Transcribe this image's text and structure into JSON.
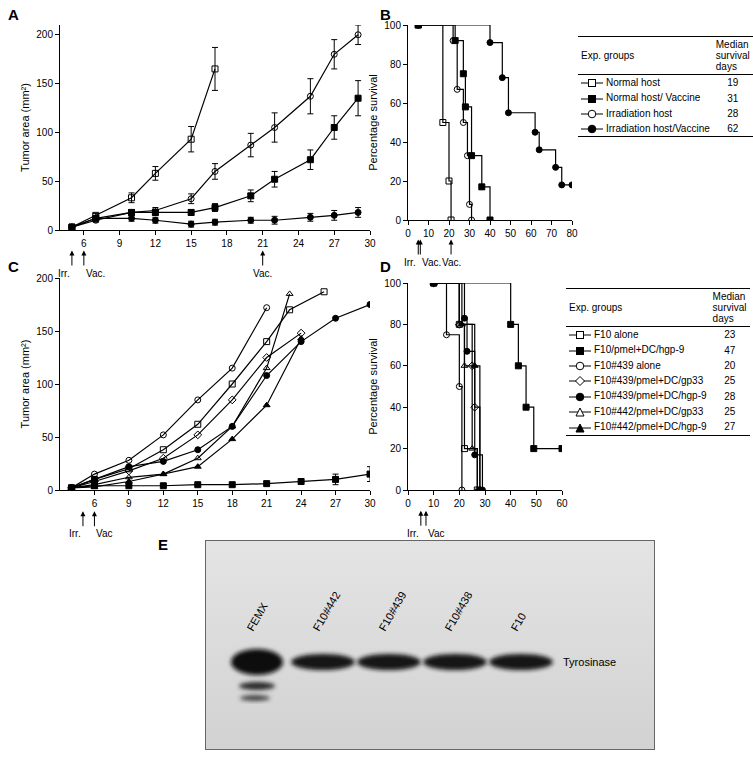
{
  "chart_data": [
    {
      "panel": "A",
      "type": "line",
      "color": "#000000",
      "y_label": "Tumor area (mm²)",
      "xlim": [
        4,
        30
      ],
      "xticks": [
        6,
        9,
        12,
        15,
        18,
        21,
        24,
        27,
        30
      ],
      "ylim": [
        0,
        210
      ],
      "yticks": [
        0,
        50,
        100,
        150,
        200
      ],
      "annotations": [
        {
          "text": "Irr.",
          "x": 5
        },
        {
          "text": "Vac.",
          "x": 6
        },
        {
          "text": "Vac.",
          "x": 21
        }
      ],
      "series": [
        {
          "marker": "square-open",
          "x": [
            5,
            7,
            10,
            12,
            15,
            17
          ],
          "values": [
            3,
            15,
            33,
            58,
            93,
            165
          ],
          "errors": [
            1,
            2,
            5,
            7,
            13,
            22
          ]
        },
        {
          "marker": "square",
          "x": [
            5,
            7,
            10,
            12,
            15,
            17,
            20,
            22,
            25,
            27,
            29
          ],
          "values": [
            3,
            12,
            18,
            18,
            18,
            23,
            35,
            52,
            72,
            105,
            135
          ],
          "errors": [
            1,
            2,
            3,
            3,
            3,
            4,
            6,
            8,
            10,
            12,
            18
          ]
        },
        {
          "marker": "circle-open",
          "x": [
            5,
            7,
            10,
            12,
            15,
            17,
            20,
            22,
            25,
            27,
            29
          ],
          "values": [
            3,
            10,
            18,
            20,
            32,
            60,
            87,
            105,
            137,
            180,
            200
          ],
          "errors": [
            1,
            2,
            3,
            3,
            5,
            8,
            12,
            15,
            18,
            15,
            10
          ]
        },
        {
          "marker": "circle",
          "x": [
            5,
            7,
            10,
            12,
            15,
            17,
            20,
            22,
            25,
            27,
            29
          ],
          "values": [
            3,
            12,
            12,
            10,
            6,
            8,
            10,
            10,
            13,
            15,
            18
          ],
          "errors": [
            1,
            2,
            3,
            3,
            3,
            3,
            3,
            4,
            4,
            5,
            5
          ]
        }
      ]
    },
    {
      "panel": "B",
      "type": "line",
      "line_style": "step",
      "color": "#000000",
      "y_label": "Percentage survival",
      "xlim": [
        0,
        80
      ],
      "xticks": [
        0,
        10,
        20,
        30,
        40,
        50,
        60,
        70,
        80
      ],
      "ylim": [
        0,
        100
      ],
      "yticks": [
        0,
        20,
        40,
        60,
        80,
        100
      ],
      "annotations": [
        {
          "text": "Irr.",
          "x": 5
        },
        {
          "text": "Vac.",
          "x": 6
        },
        {
          "text": "Vac.",
          "x": 21
        }
      ],
      "table_header": [
        "Exp. groups",
        "Median survival days"
      ],
      "series": [
        {
          "name": "Normal host",
          "marker": "square-open",
          "median_survival": 19,
          "x": [
            5,
            17,
            20,
            21
          ],
          "values": [
            100,
            50,
            20,
            0
          ]
        },
        {
          "name": "Normal host/ Vaccine",
          "marker": "square",
          "median_survival": 31,
          "x": [
            5,
            23,
            27,
            28,
            31,
            36,
            40
          ],
          "values": [
            100,
            92,
            75,
            58,
            33,
            17,
            0
          ]
        },
        {
          "name": "Irradiation host",
          "marker": "circle-open",
          "median_survival": 28,
          "x": [
            5,
            22,
            24,
            27,
            29,
            30,
            31
          ],
          "values": [
            100,
            92,
            67,
            50,
            33,
            8,
            0
          ]
        },
        {
          "name": "Irradiation host/Vaccine",
          "marker": "circle",
          "median_survival": 62,
          "x": [
            5,
            40,
            46,
            49,
            62,
            64,
            72,
            75,
            80
          ],
          "values": [
            100,
            91,
            73,
            55,
            45,
            36,
            27,
            18,
            18
          ]
        }
      ]
    },
    {
      "panel": "C",
      "type": "line",
      "color": "#000000",
      "y_label": "Tumor area (mm²)",
      "xlim": [
        3,
        30
      ],
      "xticks": [
        6,
        9,
        12,
        15,
        18,
        21,
        24,
        27,
        30
      ],
      "ylim": [
        0,
        200
      ],
      "yticks": [
        0,
        50,
        100,
        150,
        200
      ],
      "annotations": [
        {
          "text": "Irr.",
          "x": 5
        },
        {
          "text": "Vac",
          "x": 6
        }
      ],
      "series": [
        {
          "marker": "square-open",
          "x": [
            4,
            6,
            9,
            12,
            15,
            18,
            21,
            23,
            26
          ],
          "values": [
            2,
            10,
            20,
            38,
            62,
            100,
            140,
            170,
            187
          ]
        },
        {
          "marker": "square",
          "x": [
            4,
            6,
            9,
            12,
            15,
            18,
            21,
            24,
            27,
            30
          ],
          "values": [
            2,
            4,
            4,
            4,
            5,
            5,
            6,
            8,
            10,
            15
          ],
          "errors": [
            null,
            null,
            null,
            null,
            null,
            null,
            null,
            null,
            5,
            7
          ]
        },
        {
          "marker": "circle-open",
          "x": [
            4,
            6,
            9,
            12,
            15,
            18,
            21
          ],
          "values": [
            2,
            15,
            28,
            52,
            85,
            115,
            172
          ]
        },
        {
          "marker": "diamond-open",
          "x": [
            4,
            6,
            9,
            12,
            15,
            18,
            21,
            24
          ],
          "values": [
            2,
            8,
            18,
            30,
            52,
            85,
            125,
            148
          ]
        },
        {
          "marker": "circle",
          "x": [
            4,
            6,
            9,
            12,
            15,
            18,
            21,
            24,
            27,
            30
          ],
          "values": [
            2,
            10,
            22,
            27,
            38,
            60,
            108,
            140,
            162,
            175
          ]
        },
        {
          "marker": "triangle-up-open",
          "x": [
            4,
            6,
            9,
            12,
            15,
            18,
            21,
            23
          ],
          "values": [
            2,
            5,
            12,
            15,
            30,
            60,
            115,
            185
          ]
        },
        {
          "marker": "triangle-up",
          "x": [
            4,
            6,
            9,
            12,
            15,
            18,
            21,
            24
          ],
          "values": [
            2,
            3,
            8,
            15,
            22,
            48,
            80,
            143
          ]
        }
      ]
    },
    {
      "panel": "D",
      "type": "line",
      "line_style": "step",
      "color": "#000000",
      "y_label": "Percentage survival",
      "xlim": [
        0,
        60
      ],
      "xticks": [
        0,
        10,
        20,
        30,
        40,
        50,
        60
      ],
      "ylim": [
        0,
        100
      ],
      "yticks": [
        0,
        20,
        40,
        60,
        80,
        100
      ],
      "annotations": [
        {
          "text": "Irr.",
          "x": 5
        },
        {
          "text": "Vac",
          "x": 7
        }
      ],
      "table_header": [
        "Exp. groups",
        "Median survival days"
      ],
      "series": [
        {
          "name": "F10 alone",
          "marker": "square-open",
          "median_survival": 23,
          "x": [
            10,
            20,
            22,
            27
          ],
          "values": [
            100,
            80,
            20,
            0
          ]
        },
        {
          "name": "F10/pmel+DC/hgp-9",
          "marker": "square",
          "median_survival": 47,
          "x": [
            10,
            40,
            43,
            46,
            49,
            60
          ],
          "values": [
            100,
            80,
            60,
            40,
            20,
            20
          ]
        },
        {
          "name": "F10#439 alone",
          "marker": "circle-open",
          "median_survival": 20,
          "x": [
            10,
            15,
            20,
            21
          ],
          "values": [
            100,
            75,
            50,
            0
          ]
        },
        {
          "name": "F10#439/pmel+DC/gp33",
          "marker": "diamond-open",
          "median_survival": 25,
          "x": [
            10,
            20,
            25,
            26,
            28
          ],
          "values": [
            100,
            80,
            60,
            40,
            0
          ]
        },
        {
          "name": "F10#439/pmel+DC/hgp-9",
          "marker": "circle",
          "median_survival": 28,
          "x": [
            10,
            22,
            23,
            26,
            29
          ],
          "values": [
            100,
            83,
            67,
            17,
            0
          ]
        },
        {
          "name": "F10#442/pmel+DC/gp33",
          "marker": "triangle-up-open",
          "median_survival": 25,
          "x": [
            10,
            20,
            22,
            25,
            27
          ],
          "values": [
            100,
            80,
            60,
            20,
            0
          ]
        },
        {
          "name": "F10#442/pmel+DC/hgp-9",
          "marker": "triangle-up",
          "median_survival": 27,
          "x": [
            10,
            21,
            26,
            28
          ],
          "values": [
            100,
            80,
            60,
            0
          ]
        }
      ]
    }
  ],
  "blot": {
    "panel": "E",
    "lanes": [
      "FEMX",
      "F10#442",
      "F10#439",
      "F10#438",
      "F10"
    ],
    "band": "Tyrosinase"
  }
}
